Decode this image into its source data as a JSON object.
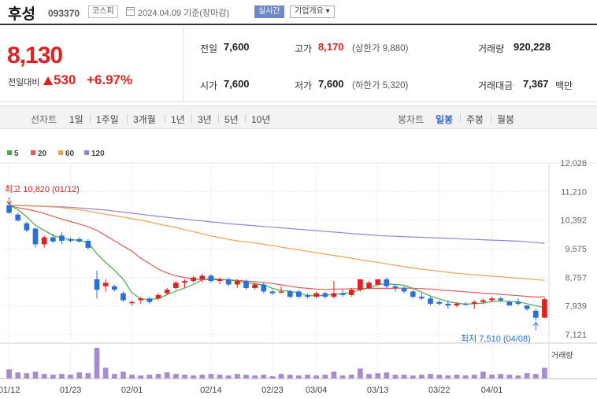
{
  "header": {
    "name": "후성",
    "code": "093370",
    "market": "코스피",
    "date": "2024.04.09 기준(장마감)",
    "realtime_label": "실시간",
    "overview_label": "기업개요 ▾"
  },
  "price": {
    "current": "8,130",
    "change_label": "전일대비",
    "change": "530",
    "change_pct": "+6.97%"
  },
  "stats": {
    "prev_label": "전일",
    "prev": "7,600",
    "open_label": "시가",
    "open": "7,600",
    "high_label": "고가",
    "high": "8,170",
    "upper_limit": "(상한가 9,880)",
    "low_label": "저가",
    "low": "7,600",
    "lower_limit": "(하한가 5,320)",
    "volume_label": "거래량",
    "volume": "920,228",
    "amount_label": "거래대금",
    "amount": "7,367",
    "amount_unit": "백만"
  },
  "toolbar": {
    "line_label": "선차트",
    "periods": [
      "1일",
      "1주일",
      "3개월",
      "1년",
      "3년",
      "5년",
      "10년"
    ],
    "candle_label": "봉차트",
    "candles": [
      "일봉",
      "주봉",
      "월봉"
    ],
    "active_candle": "일봉"
  },
  "annotations": {
    "high": "최고 10,820 (01/12)",
    "low": "최저 7,510 (04/08)",
    "volume_label": "거래량"
  },
  "colors": {
    "up": "#e12121",
    "down": "#2a6fdb",
    "ma5": "#4aa84a",
    "ma20": "#e05a5a",
    "ma60": "#f0a050",
    "ma120": "#9b7fcf"
  },
  "chart_data": {
    "type": "candlestick",
    "ylim": [
      7121,
      12028
    ],
    "y_ticks": [
      "12,028",
      "11,210",
      "10,392",
      "9,575",
      "8,757",
      "7,939",
      "7,121"
    ],
    "x_ticks": [
      "01/12",
      "01/23",
      "02/01",
      "02/14",
      "02/23",
      "03/04",
      "03/13",
      "03/22",
      "04/01"
    ],
    "x_tick_index": [
      0,
      7,
      14,
      23,
      30,
      35,
      42,
      49,
      55
    ],
    "legend": [
      {
        "name": "5",
        "color": "#4aa84a"
      },
      {
        "name": "20",
        "color": "#e05a5a"
      },
      {
        "name": "60",
        "color": "#f0a050"
      },
      {
        "name": "120",
        "color": "#9b7fcf"
      }
    ],
    "candles": [
      {
        "o": 10820,
        "h": 10820,
        "l": 10580,
        "c": 10600
      },
      {
        "o": 10550,
        "h": 10600,
        "l": 10350,
        "c": 10380
      },
      {
        "o": 10300,
        "h": 10350,
        "l": 10050,
        "c": 10100
      },
      {
        "o": 10150,
        "h": 10180,
        "l": 9600,
        "c": 9700
      },
      {
        "o": 9700,
        "h": 9950,
        "l": 9600,
        "c": 9900
      },
      {
        "o": 9900,
        "h": 10000,
        "l": 9750,
        "c": 9780
      },
      {
        "o": 9950,
        "h": 10050,
        "l": 9700,
        "c": 9800
      },
      {
        "o": 9850,
        "h": 9900,
        "l": 9750,
        "c": 9800
      },
      {
        "o": 9850,
        "h": 9900,
        "l": 9750,
        "c": 9780
      },
      {
        "o": 9800,
        "h": 9850,
        "l": 9550,
        "c": 9600
      },
      {
        "o": 8700,
        "h": 8950,
        "l": 8150,
        "c": 8400
      },
      {
        "o": 8500,
        "h": 8700,
        "l": 8350,
        "c": 8600
      },
      {
        "o": 8500,
        "h": 8550,
        "l": 8350,
        "c": 8400
      },
      {
        "o": 8300,
        "h": 8350,
        "l": 8050,
        "c": 8100
      },
      {
        "o": 8050,
        "h": 8100,
        "l": 7950,
        "c": 8050
      },
      {
        "o": 8100,
        "h": 8200,
        "l": 8000,
        "c": 8150
      },
      {
        "o": 8150,
        "h": 8200,
        "l": 8000,
        "c": 8050
      },
      {
        "o": 8150,
        "h": 8300,
        "l": 8100,
        "c": 8250
      },
      {
        "o": 8300,
        "h": 8450,
        "l": 8250,
        "c": 8400
      },
      {
        "o": 8450,
        "h": 8650,
        "l": 8400,
        "c": 8600
      },
      {
        "o": 8600,
        "h": 8700,
        "l": 8450,
        "c": 8650
      },
      {
        "o": 8650,
        "h": 8800,
        "l": 8600,
        "c": 8750
      },
      {
        "o": 8700,
        "h": 8850,
        "l": 8600,
        "c": 8800
      },
      {
        "o": 8800,
        "h": 8850,
        "l": 8600,
        "c": 8650
      },
      {
        "o": 8650,
        "h": 8750,
        "l": 8550,
        "c": 8700
      },
      {
        "o": 8700,
        "h": 8750,
        "l": 8500,
        "c": 8550
      },
      {
        "o": 8550,
        "h": 8700,
        "l": 8450,
        "c": 8650
      },
      {
        "o": 8650,
        "h": 8700,
        "l": 8400,
        "c": 8450
      },
      {
        "o": 8450,
        "h": 8600,
        "l": 8400,
        "c": 8550
      },
      {
        "o": 8550,
        "h": 8600,
        "l": 8300,
        "c": 8350
      },
      {
        "o": 8350,
        "h": 8400,
        "l": 8250,
        "c": 8300
      },
      {
        "o": 8350,
        "h": 8500,
        "l": 8300,
        "c": 8350
      },
      {
        "o": 8350,
        "h": 8400,
        "l": 8150,
        "c": 8200
      },
      {
        "o": 8350,
        "h": 8400,
        "l": 8150,
        "c": 8200
      },
      {
        "o": 8250,
        "h": 8300,
        "l": 8150,
        "c": 8200
      },
      {
        "o": 8200,
        "h": 8350,
        "l": 8150,
        "c": 8300
      },
      {
        "o": 8300,
        "h": 8350,
        "l": 8150,
        "c": 8200
      },
      {
        "o": 8200,
        "h": 8650,
        "l": 8150,
        "c": 8300
      },
      {
        "o": 8300,
        "h": 8400,
        "l": 8200,
        "c": 8250
      },
      {
        "o": 8250,
        "h": 8450,
        "l": 8200,
        "c": 8400
      },
      {
        "o": 8400,
        "h": 8700,
        "l": 8350,
        "c": 8700
      },
      {
        "o": 8450,
        "h": 8650,
        "l": 8400,
        "c": 8600
      },
      {
        "o": 8550,
        "h": 8700,
        "l": 8500,
        "c": 8700
      },
      {
        "o": 8700,
        "h": 8750,
        "l": 8450,
        "c": 8500
      },
      {
        "o": 8500,
        "h": 8550,
        "l": 8350,
        "c": 8450
      },
      {
        "o": 8450,
        "h": 8500,
        "l": 8300,
        "c": 8350
      },
      {
        "o": 8350,
        "h": 8400,
        "l": 8150,
        "c": 8200
      },
      {
        "o": 8200,
        "h": 8300,
        "l": 8100,
        "c": 8150
      },
      {
        "o": 8150,
        "h": 8200,
        "l": 7950,
        "c": 8000
      },
      {
        "o": 8050,
        "h": 8100,
        "l": 7950,
        "c": 8000
      },
      {
        "o": 8000,
        "h": 8100,
        "l": 7850,
        "c": 7950
      },
      {
        "o": 7950,
        "h": 8050,
        "l": 7900,
        "c": 8000
      },
      {
        "o": 8000,
        "h": 8050,
        "l": 7950,
        "c": 7980
      },
      {
        "o": 8000,
        "h": 8100,
        "l": 7850,
        "c": 8050
      },
      {
        "o": 8050,
        "h": 8150,
        "l": 8000,
        "c": 8100
      },
      {
        "o": 8100,
        "h": 8200,
        "l": 8050,
        "c": 8150
      },
      {
        "o": 8150,
        "h": 8200,
        "l": 8050,
        "c": 8100
      },
      {
        "o": 8050,
        "h": 8100,
        "l": 7950,
        "c": 7950
      },
      {
        "o": 8050,
        "h": 8150,
        "l": 7950,
        "c": 8000
      },
      {
        "o": 7950,
        "h": 7950,
        "l": 7800,
        "c": 7850
      },
      {
        "o": 7800,
        "h": 7850,
        "l": 7510,
        "c": 7600
      },
      {
        "o": 7600,
        "h": 8170,
        "l": 7600,
        "c": 8130
      }
    ],
    "volume": [
      12,
      8,
      7,
      9,
      6,
      5,
      6,
      5,
      8,
      7,
      40,
      14,
      6,
      9,
      5,
      4,
      5,
      6,
      8,
      6,
      5,
      4,
      5,
      6,
      5,
      4,
      6,
      5,
      4,
      5,
      3,
      6,
      5,
      4,
      5,
      4,
      5,
      9,
      4,
      5,
      13,
      6,
      7,
      8,
      5,
      5,
      4,
      5,
      6,
      5,
      4,
      5,
      4,
      5,
      9,
      5,
      6,
      5,
      4,
      7,
      6,
      14
    ],
    "ma5": [
      10820,
      10690,
      10490,
      10240,
      10100,
      9950,
      9880,
      9830,
      9820,
      9750,
      9430,
      9180,
      8960,
      8700,
      8310,
      8140,
      8120,
      8150,
      8260,
      8360,
      8450,
      8550,
      8690,
      8720,
      8700,
      8680,
      8650,
      8600,
      8570,
      8540,
      8440,
      8380,
      8360,
      8300,
      8230,
      8230,
      8240,
      8270,
      8290,
      8320,
      8400,
      8450,
      8550,
      8570,
      8550,
      8530,
      8440,
      8330,
      8220,
      8140,
      8060,
      8020,
      7990,
      8000,
      8020,
      8060,
      8080,
      8060,
      8060,
      8000,
      7940,
      7890
    ],
    "ma20": [
      10820,
      10750,
      10700,
      10650,
      10580,
      10500,
      10420,
      10350,
      10280,
      10200,
      10100,
      9950,
      9800,
      9650,
      9500,
      9300,
      9150,
      8990,
      8880,
      8800,
      8750,
      8710,
      8690,
      8690,
      8690,
      8680,
      8670,
      8650,
      8630,
      8610,
      8580,
      8540,
      8500,
      8460,
      8440,
      8420,
      8410,
      8420,
      8420,
      8430,
      8430,
      8440,
      8440,
      8440,
      8440,
      8450,
      8440,
      8430,
      8420,
      8400,
      8380,
      8360,
      8340,
      8320,
      8300,
      8290,
      8270,
      8250,
      8230,
      8210,
      8190,
      8200
    ],
    "ma60": [
      10820,
      10810,
      10800,
      10790,
      10780,
      10770,
      10750,
      10720,
      10690,
      10650,
      10600,
      10560,
      10520,
      10480,
      10430,
      10390,
      10340,
      10280,
      10230,
      10180,
      10120,
      10060,
      10000,
      9940,
      9890,
      9840,
      9800,
      9770,
      9740,
      9700,
      9660,
      9620,
      9580,
      9540,
      9500,
      9460,
      9420,
      9380,
      9340,
      9300,
      9260,
      9220,
      9180,
      9140,
      9100,
      9060,
      9020,
      8990,
      8960,
      8930,
      8900,
      8870,
      8850,
      8830,
      8810,
      8790,
      8770,
      8750,
      8730,
      8710,
      8690,
      8670
    ],
    "ma120": [
      10820,
      10815,
      10810,
      10800,
      10790,
      10780,
      10770,
      10760,
      10740,
      10720,
      10700,
      10680,
      10650,
      10620,
      10590,
      10560,
      10530,
      10500,
      10470,
      10440,
      10420,
      10390,
      10370,
      10340,
      10320,
      10290,
      10270,
      10250,
      10230,
      10210,
      10190,
      10170,
      10150,
      10130,
      10110,
      10090,
      10070,
      10050,
      10030,
      10010,
      9990,
      9970,
      9950,
      9940,
      9930,
      9920,
      9910,
      9900,
      9890,
      9880,
      9870,
      9860,
      9850,
      9840,
      9830,
      9820,
      9810,
      9800,
      9790,
      9770,
      9750,
      9730
    ]
  }
}
